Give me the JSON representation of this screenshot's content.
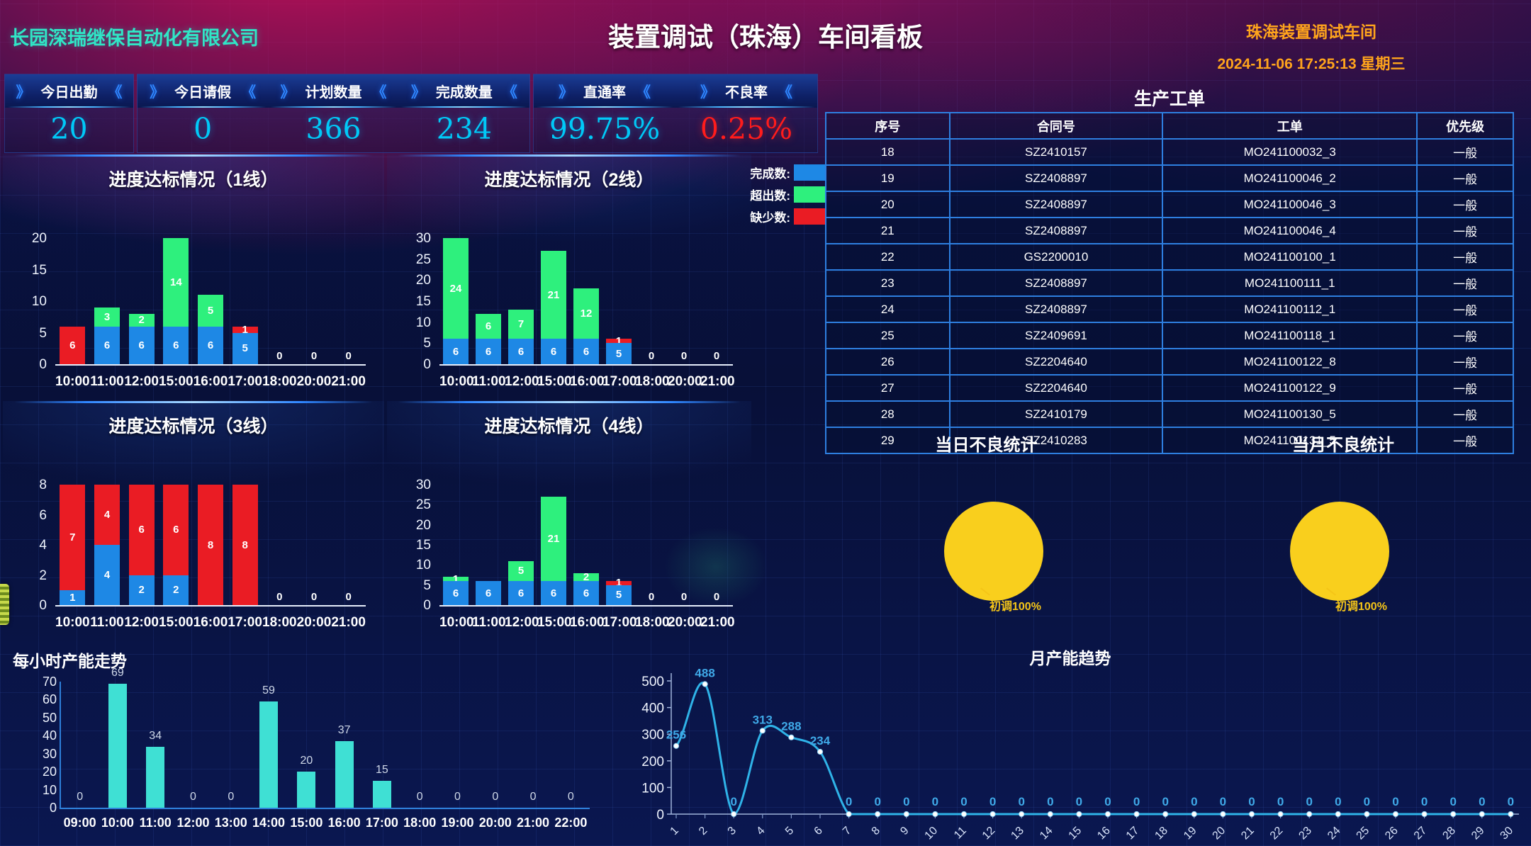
{
  "header": {
    "company": "长园深瑞继保自动化有限公司",
    "title": "装置调试（珠海）车间看板",
    "workshop": "珠海装置调试车间",
    "datetime": "2024-11-06 17:25:13 星期三"
  },
  "icons": {
    "chevron_right": "》",
    "chevron_left": "《"
  },
  "kpis": [
    {
      "label": "今日出勤",
      "value": "20"
    },
    {
      "label": "今日请假",
      "value": "0"
    },
    {
      "label": "计划数量",
      "value": "366"
    },
    {
      "label": "完成数量",
      "value": "234"
    },
    {
      "label": "直通率",
      "value": "99.75%"
    },
    {
      "label": "不良率",
      "value": "0.25%"
    }
  ],
  "accent_colors": {
    "kpi_value": "#00c9f7",
    "kpi_bad": "#ff1c1c",
    "orange": "#ffa41c",
    "teal": "#30e6c6"
  },
  "legend": [
    {
      "label": "完成数:",
      "color": "#1e88e5"
    },
    {
      "label": "超出数:",
      "color": "#2ef07d"
    },
    {
      "label": "缺少数:",
      "color": "#ea1c24"
    }
  ],
  "chart_data": [
    {
      "type": "bar",
      "stacked": true,
      "title": "进度达标情况（1线）",
      "categories": [
        "10:00",
        "11:00",
        "12:00",
        "15:00",
        "16:00",
        "17:00",
        "18:00",
        "20:00",
        "21:00"
      ],
      "series": [
        {
          "name": "完成数",
          "color": "#1e88e5",
          "values": [
            0,
            6,
            6,
            6,
            6,
            5,
            0,
            0,
            0
          ]
        },
        {
          "name": "超出数",
          "color": "#2ef07d",
          "values": [
            0,
            3,
            2,
            14,
            5,
            0,
            0,
            0,
            0
          ]
        },
        {
          "name": "缺少数",
          "color": "#ea1c24",
          "values": [
            6,
            0,
            0,
            0,
            0,
            1,
            0,
            0,
            0
          ]
        }
      ],
      "ylim": [
        0,
        20
      ],
      "yticks": [
        0,
        5,
        10,
        15,
        20
      ]
    },
    {
      "type": "bar",
      "stacked": true,
      "title": "进度达标情况（2线）",
      "categories": [
        "10:00",
        "11:00",
        "12:00",
        "15:00",
        "16:00",
        "17:00",
        "18:00",
        "20:00",
        "21:00"
      ],
      "series": [
        {
          "name": "完成数",
          "color": "#1e88e5",
          "values": [
            6,
            6,
            6,
            6,
            6,
            5,
            0,
            0,
            0
          ]
        },
        {
          "name": "超出数",
          "color": "#2ef07d",
          "values": [
            24,
            6,
            7,
            21,
            12,
            0,
            0,
            0,
            0
          ]
        },
        {
          "name": "缺少数",
          "color": "#ea1c24",
          "values": [
            0,
            0,
            0,
            0,
            0,
            1,
            0,
            0,
            0
          ]
        }
      ],
      "ylim": [
        0,
        30
      ],
      "yticks": [
        0,
        5,
        10,
        15,
        20,
        25,
        30
      ]
    },
    {
      "type": "bar",
      "stacked": true,
      "title": "进度达标情况（3线）",
      "categories": [
        "10:00",
        "11:00",
        "12:00",
        "15:00",
        "16:00",
        "17:00",
        "18:00",
        "20:00",
        "21:00"
      ],
      "series": [
        {
          "name": "完成数",
          "color": "#1e88e5",
          "values": [
            1,
            4,
            2,
            2,
            0,
            0,
            0,
            0,
            0
          ]
        },
        {
          "name": "超出数",
          "color": "#2ef07d",
          "values": [
            0,
            0,
            0,
            0,
            0,
            0,
            0,
            0,
            0
          ]
        },
        {
          "name": "缺少数",
          "color": "#ea1c24",
          "values": [
            7,
            4,
            6,
            6,
            8,
            8,
            0,
            0,
            0
          ]
        }
      ],
      "ylim": [
        0,
        8
      ],
      "yticks": [
        0,
        2,
        4,
        6,
        8
      ]
    },
    {
      "type": "bar",
      "stacked": true,
      "title": "进度达标情况（4线）",
      "categories": [
        "10:00",
        "11:00",
        "12:00",
        "15:00",
        "16:00",
        "17:00",
        "18:00",
        "20:00",
        "21:00"
      ],
      "series": [
        {
          "name": "完成数",
          "color": "#1e88e5",
          "values": [
            6,
            6,
            6,
            6,
            6,
            5,
            0,
            0,
            0
          ]
        },
        {
          "name": "超出数",
          "color": "#2ef07d",
          "values": [
            1,
            0,
            5,
            21,
            2,
            0,
            0,
            0,
            0
          ]
        },
        {
          "name": "缺少数",
          "color": "#ea1c24",
          "values": [
            0,
            0,
            0,
            0,
            0,
            1,
            0,
            0,
            0
          ]
        }
      ],
      "ylim": [
        0,
        30
      ],
      "yticks": [
        0,
        5,
        10,
        15,
        20,
        25,
        30
      ]
    },
    {
      "type": "bar",
      "title": "每小时产能走势",
      "categories": [
        "09:00",
        "10:00",
        "11:00",
        "12:00",
        "13:00",
        "14:00",
        "15:00",
        "16:00",
        "17:00",
        "18:00",
        "19:00",
        "20:00",
        "21:00",
        "22:00"
      ],
      "values": [
        0,
        69,
        34,
        0,
        0,
        59,
        20,
        37,
        15,
        0,
        0,
        0,
        0,
        0
      ],
      "color": "#3fe0d4",
      "ylim": [
        0,
        70
      ],
      "yticks": [
        0,
        10,
        20,
        30,
        40,
        50,
        60,
        70
      ]
    },
    {
      "type": "line",
      "title": "月产能趋势",
      "x": [
        1,
        2,
        3,
        4,
        5,
        6,
        7,
        8,
        9,
        10,
        11,
        12,
        13,
        14,
        15,
        16,
        17,
        18,
        19,
        20,
        21,
        22,
        23,
        24,
        25,
        26,
        27,
        28,
        29,
        30
      ],
      "values": [
        256,
        488,
        0,
        313,
        288,
        234,
        0,
        0,
        0,
        0,
        0,
        0,
        0,
        0,
        0,
        0,
        0,
        0,
        0,
        0,
        0,
        0,
        0,
        0,
        0,
        0,
        0,
        0,
        0,
        0
      ],
      "color": "#2fb3e8",
      "ylim": [
        0,
        500
      ],
      "yticks": [
        0,
        100,
        200,
        300,
        400,
        500
      ]
    },
    {
      "type": "pie",
      "title": "当日不良统计",
      "slices": [
        {
          "label": "初调",
          "pct": "100%",
          "color": "#f9cf1d"
        }
      ],
      "callout": "初调100%"
    },
    {
      "type": "pie",
      "title": "当月不良统计",
      "slices": [
        {
          "label": "初调",
          "pct": "100%",
          "color": "#f9cf1d"
        }
      ],
      "callout": "初调100%"
    }
  ],
  "table": {
    "title": "生产工单",
    "headers": [
      "序号",
      "合同号",
      "工单",
      "优先级"
    ],
    "col_widths_pct": [
      18,
      31,
      37,
      14
    ],
    "rows": [
      [
        "18",
        "SZ2410157",
        "MO241100032_3",
        "一般"
      ],
      [
        "19",
        "SZ2408897",
        "MO241100046_2",
        "一般"
      ],
      [
        "20",
        "SZ2408897",
        "MO241100046_3",
        "一般"
      ],
      [
        "21",
        "SZ2408897",
        "MO241100046_4",
        "一般"
      ],
      [
        "22",
        "GS2200010",
        "MO241100100_1",
        "一般"
      ],
      [
        "23",
        "SZ2408897",
        "MO241100111_1",
        "一般"
      ],
      [
        "24",
        "SZ2408897",
        "MO241100112_1",
        "一般"
      ],
      [
        "25",
        "SZ2409691",
        "MO241100118_1",
        "一般"
      ],
      [
        "26",
        "SZ2204640",
        "MO241100122_8",
        "一般"
      ],
      [
        "27",
        "SZ2204640",
        "MO241100122_9",
        "一般"
      ],
      [
        "28",
        "SZ2410179",
        "MO241100130_5",
        "一般"
      ],
      [
        "29",
        "SZ2410283",
        "MO241100131_5",
        "一般"
      ]
    ]
  }
}
